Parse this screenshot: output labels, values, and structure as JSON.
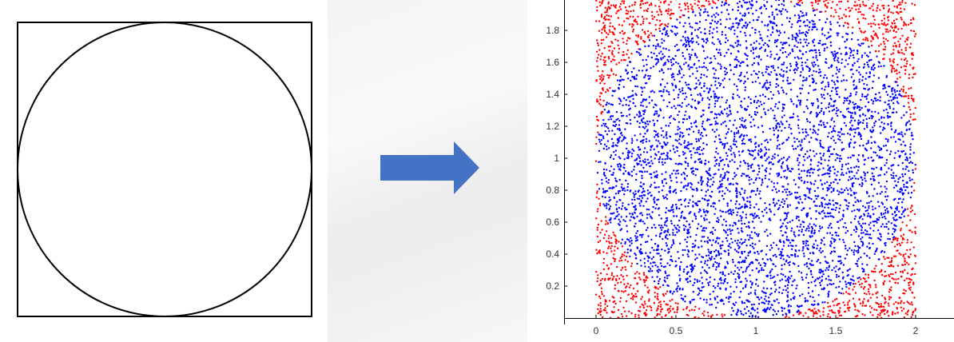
{
  "diagram": {
    "shapes": [
      "square",
      "inscribed-circle"
    ],
    "stroke_color": "#000000"
  },
  "arrow": {
    "icon": "right-arrow-icon",
    "color": "#4472c4"
  },
  "chart_data": {
    "type": "scatter",
    "title": "",
    "xlabel": "",
    "ylabel": "",
    "xlim": [
      0,
      2
    ],
    "ylim": [
      0,
      2
    ],
    "x_ticks": [
      "0",
      "0.5",
      "1",
      "1.5",
      "2"
    ],
    "y_ticks": [
      "0.2",
      "0.4",
      "0.6",
      "0.8",
      "1",
      "1.2",
      "1.4",
      "1.6",
      "1.8"
    ],
    "circle_center": [
      1,
      1
    ],
    "circle_radius": 1,
    "grid": false,
    "legend": "none",
    "series": [
      {
        "color": "#ff0000",
        "rule": "outside circle",
        "approx_count": 2700
      },
      {
        "color": "#0000ff",
        "rule": "inside circle",
        "approx_count": 9300
      }
    ]
  }
}
